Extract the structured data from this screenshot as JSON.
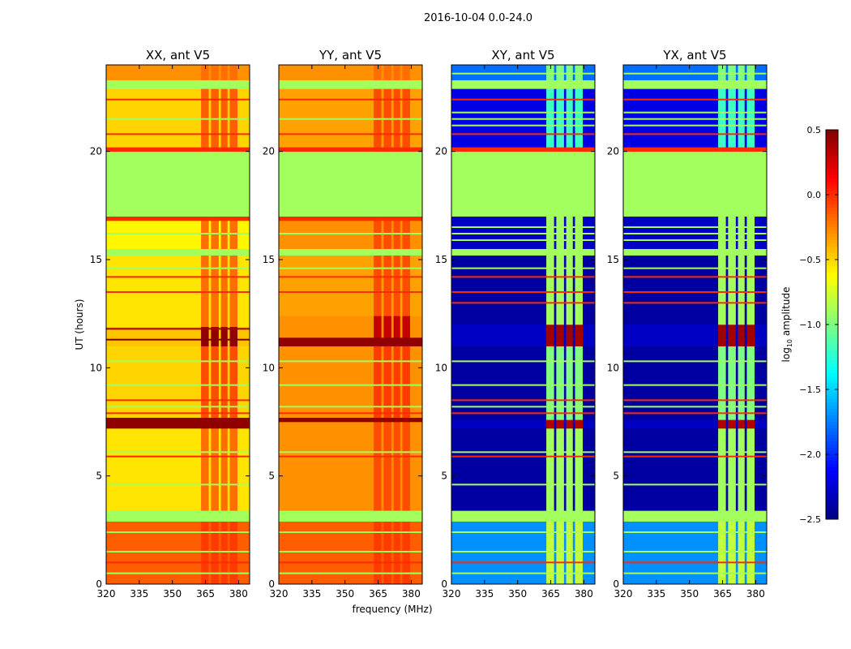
{
  "chart_data": {
    "type": "heatmap",
    "title": "2016-10-04 0.0-24.0",
    "xlabel": "frequency (MHz)",
    "ylabel": "UT (hours)",
    "xlim": [
      320,
      385
    ],
    "ylim": [
      0,
      24
    ],
    "xticks": [
      "320",
      "335",
      "350",
      "365",
      "380"
    ],
    "yticks": [
      "0",
      "5",
      "10",
      "15",
      "20"
    ],
    "colorbar": {
      "label_main": "log",
      "label_sub": "10",
      "label_rest": " amplitude",
      "range": [
        -2.5,
        0.5
      ],
      "colormap": "jet",
      "ticks": [
        "0.5",
        "0.0",
        "−0.5",
        "−1.0",
        "−1.5",
        "−2.0",
        "−2.5"
      ],
      "tick_values": [
        0.5,
        0.0,
        -0.5,
        -1.0,
        -1.5,
        -2.0,
        -2.5
      ]
    },
    "rfi_region_mhz": [
      363,
      382
    ],
    "rfi_columns_mhz": [
      [
        363,
        366.5
      ],
      [
        367.5,
        371
      ],
      [
        372,
        375
      ],
      [
        376,
        379.5
      ]
    ],
    "panels": [
      {
        "title": "XX, ant V5",
        "bands": [
          [
            0,
            2.9,
            -0.15,
            -0.05
          ],
          [
            2.9,
            3.4,
            -0.9,
            -0.9
          ],
          [
            3.4,
            7.2,
            -0.55,
            -0.2
          ],
          [
            7.2,
            7.7,
            0.45,
            0.45
          ],
          [
            7.7,
            11,
            -0.5,
            -0.1
          ],
          [
            11,
            11.9,
            -0.45,
            0.45
          ],
          [
            11.9,
            15.2,
            -0.55,
            -0.2
          ],
          [
            15.2,
            15.5,
            -0.9,
            -0.9
          ],
          [
            15.5,
            16.8,
            -0.6,
            -0.2
          ],
          [
            16.8,
            17,
            0,
            0
          ],
          [
            17,
            20,
            -0.9,
            -0.9
          ],
          [
            20,
            20.2,
            0,
            0
          ],
          [
            20.2,
            22.9,
            -0.5,
            -0.15
          ],
          [
            22.9,
            23.3,
            -0.9,
            -0.9
          ],
          [
            23.3,
            24,
            -0.3,
            -0.2
          ]
        ],
        "lines": [
          [
            0.5,
            -0.9
          ],
          [
            1.0,
            0
          ],
          [
            1.5,
            -0.9
          ],
          [
            2.4,
            -0.9
          ],
          [
            4.6,
            -0.9
          ],
          [
            5.9,
            0
          ],
          [
            6.1,
            -0.9
          ],
          [
            7.9,
            0
          ],
          [
            8.2,
            -0.9
          ],
          [
            8.5,
            0
          ],
          [
            9.2,
            -0.9
          ],
          [
            10.3,
            -0.9
          ],
          [
            11.3,
            0.5
          ],
          [
            11.8,
            0.4
          ],
          [
            13.5,
            0
          ],
          [
            14.2,
            0
          ],
          [
            14.6,
            -0.9
          ],
          [
            16.2,
            -0.9
          ],
          [
            20.8,
            0
          ],
          [
            21.5,
            -0.9
          ],
          [
            22.4,
            0
          ]
        ]
      },
      {
        "title": "YY, ant V5",
        "bands": [
          [
            0,
            2.9,
            -0.15,
            -0.05
          ],
          [
            2.9,
            3.4,
            -0.9,
            -0.9
          ],
          [
            3.4,
            7.5,
            -0.3,
            -0.1
          ],
          [
            7.5,
            7.7,
            0.45,
            0.45
          ],
          [
            7.7,
            11,
            -0.3,
            -0.05
          ],
          [
            11,
            11.4,
            0.45,
            0.45
          ],
          [
            11.4,
            12.4,
            -0.3,
            0.3
          ],
          [
            12.4,
            15.2,
            -0.35,
            -0.1
          ],
          [
            15.2,
            15.5,
            -0.9,
            -0.9
          ],
          [
            15.5,
            16.8,
            -0.3,
            -0.1
          ],
          [
            16.8,
            17,
            0,
            0
          ],
          [
            17,
            20,
            -0.9,
            -0.9
          ],
          [
            20,
            20.2,
            0,
            0
          ],
          [
            20.2,
            22.9,
            -0.35,
            -0.1
          ],
          [
            22.9,
            23.3,
            -0.9,
            -0.9
          ],
          [
            23.3,
            24,
            -0.3,
            -0.2
          ]
        ],
        "lines": [
          [
            0.5,
            -0.9
          ],
          [
            1.0,
            0
          ],
          [
            1.5,
            -0.9
          ],
          [
            2.4,
            -0.9
          ],
          [
            5.9,
            0
          ],
          [
            6.1,
            -0.9
          ],
          [
            7.9,
            0
          ],
          [
            8.2,
            -0.9
          ],
          [
            9.2,
            -0.9
          ],
          [
            10.3,
            -0.9
          ],
          [
            13.5,
            0
          ],
          [
            14.2,
            0
          ],
          [
            14.6,
            -0.9
          ],
          [
            16.2,
            -0.9
          ],
          [
            20.8,
            0
          ],
          [
            21.5,
            -0.9
          ],
          [
            22.4,
            0
          ]
        ]
      },
      {
        "title": "XY, ant V5",
        "bands": [
          [
            0,
            2.9,
            -1.7,
            -0.8
          ],
          [
            2.9,
            3.4,
            -0.9,
            -0.9
          ],
          [
            3.4,
            7.2,
            -2.4,
            -0.9
          ],
          [
            7.2,
            7.6,
            -2.3,
            0.35
          ],
          [
            7.6,
            11,
            -2.4,
            -1.0
          ],
          [
            11,
            12,
            -2.3,
            0.4
          ],
          [
            12,
            15.2,
            -2.4,
            -0.9
          ],
          [
            15.2,
            15.5,
            -0.9,
            -0.9
          ],
          [
            15.5,
            17,
            -2.3,
            -0.9
          ],
          [
            17,
            20,
            -0.9,
            -0.9
          ],
          [
            20,
            20.2,
            0,
            0
          ],
          [
            20.2,
            22.9,
            -2.2,
            -1.2
          ],
          [
            22.9,
            23.3,
            -0.9,
            -0.9
          ],
          [
            23.3,
            24,
            -1.8,
            -1.0
          ]
        ],
        "lines": [
          [
            0.5,
            -0.9
          ],
          [
            1.0,
            0
          ],
          [
            1.5,
            -0.9
          ],
          [
            2.4,
            -0.9
          ],
          [
            4.6,
            -0.9
          ],
          [
            5.9,
            0
          ],
          [
            6.1,
            -0.9
          ],
          [
            7.9,
            0
          ],
          [
            8.2,
            -0.9
          ],
          [
            8.5,
            0
          ],
          [
            9.2,
            -0.9
          ],
          [
            10.3,
            -0.9
          ],
          [
            13.0,
            0
          ],
          [
            13.5,
            0
          ],
          [
            14.2,
            0
          ],
          [
            14.6,
            -0.9
          ],
          [
            15.9,
            -0.9
          ],
          [
            16.2,
            -0.9
          ],
          [
            16.5,
            -0.9
          ],
          [
            20.8,
            0
          ],
          [
            21.2,
            -0.9
          ],
          [
            21.5,
            -0.9
          ],
          [
            21.8,
            -0.9
          ],
          [
            22.4,
            0
          ],
          [
            23.6,
            -0.9
          ]
        ]
      },
      {
        "title": "YX, ant V5",
        "bands": [
          [
            0,
            2.9,
            -1.7,
            -0.8
          ],
          [
            2.9,
            3.4,
            -0.9,
            -0.9
          ],
          [
            3.4,
            7.2,
            -2.4,
            -0.9
          ],
          [
            7.2,
            7.6,
            -2.3,
            0.35
          ],
          [
            7.6,
            11,
            -2.4,
            -1.0
          ],
          [
            11,
            12,
            -2.3,
            0.4
          ],
          [
            12,
            15.2,
            -2.4,
            -0.9
          ],
          [
            15.2,
            15.5,
            -0.9,
            -0.9
          ],
          [
            15.5,
            17,
            -2.3,
            -0.9
          ],
          [
            17,
            20,
            -0.9,
            -0.9
          ],
          [
            20,
            20.2,
            0,
            0
          ],
          [
            20.2,
            22.9,
            -2.2,
            -1.2
          ],
          [
            22.9,
            23.3,
            -0.9,
            -0.9
          ],
          [
            23.3,
            24,
            -1.8,
            -1.0
          ]
        ],
        "lines": [
          [
            0.5,
            -0.9
          ],
          [
            1.0,
            0
          ],
          [
            1.5,
            -0.9
          ],
          [
            2.4,
            -0.9
          ],
          [
            4.6,
            -0.9
          ],
          [
            5.9,
            0
          ],
          [
            6.1,
            -0.9
          ],
          [
            7.9,
            0
          ],
          [
            8.2,
            -0.9
          ],
          [
            8.5,
            0
          ],
          [
            9.2,
            -0.9
          ],
          [
            10.3,
            -0.9
          ],
          [
            13.0,
            0
          ],
          [
            13.5,
            0
          ],
          [
            14.2,
            0
          ],
          [
            14.6,
            -0.9
          ],
          [
            15.9,
            -0.9
          ],
          [
            16.2,
            -0.9
          ],
          [
            16.5,
            -0.9
          ],
          [
            20.8,
            0
          ],
          [
            21.2,
            -0.9
          ],
          [
            21.5,
            -0.9
          ],
          [
            21.8,
            -0.9
          ],
          [
            22.4,
            0
          ],
          [
            23.6,
            -0.9
          ]
        ]
      }
    ]
  }
}
